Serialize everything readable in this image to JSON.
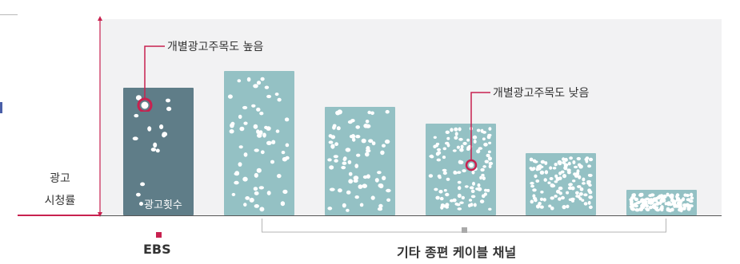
{
  "labels": {
    "y_axis_line1": "광고",
    "y_axis_line2": "시청률",
    "ad_count": "광고횟수",
    "high_attention": "개별광고주목도 높음",
    "low_attention": "개별광고주목도 낮음",
    "category_ebs": "EBS",
    "category_others": "기타 종편 케이블 채널"
  },
  "chart_data": {
    "type": "bar",
    "categories": [
      "EBS",
      "기타 종편 케이블 채널 1",
      "기타 종편 케이블 채널 2",
      "기타 종편 케이블 채널 3",
      "기타 종편 케이블 채널 4",
      "기타 종편 케이블 채널 5"
    ],
    "series": [
      {
        "values": [
          100,
          113,
          85,
          72,
          49,
          20
        ],
        "ad_count_relative": [
          14,
          60,
          70,
          110,
          120,
          140
        ]
      }
    ],
    "ylabel": "광고 시청률",
    "group_labels": [
      "EBS",
      "기타 종편 케이블 채널"
    ],
    "annotations": [
      "개별광고주목도 높음",
      "개별광고주목도 낮음"
    ],
    "colors": {
      "ebs_bar": "#5f7d88",
      "other_bar": "#94c1c4",
      "accent": "#c8214f",
      "dot": "#ffffff"
    }
  }
}
